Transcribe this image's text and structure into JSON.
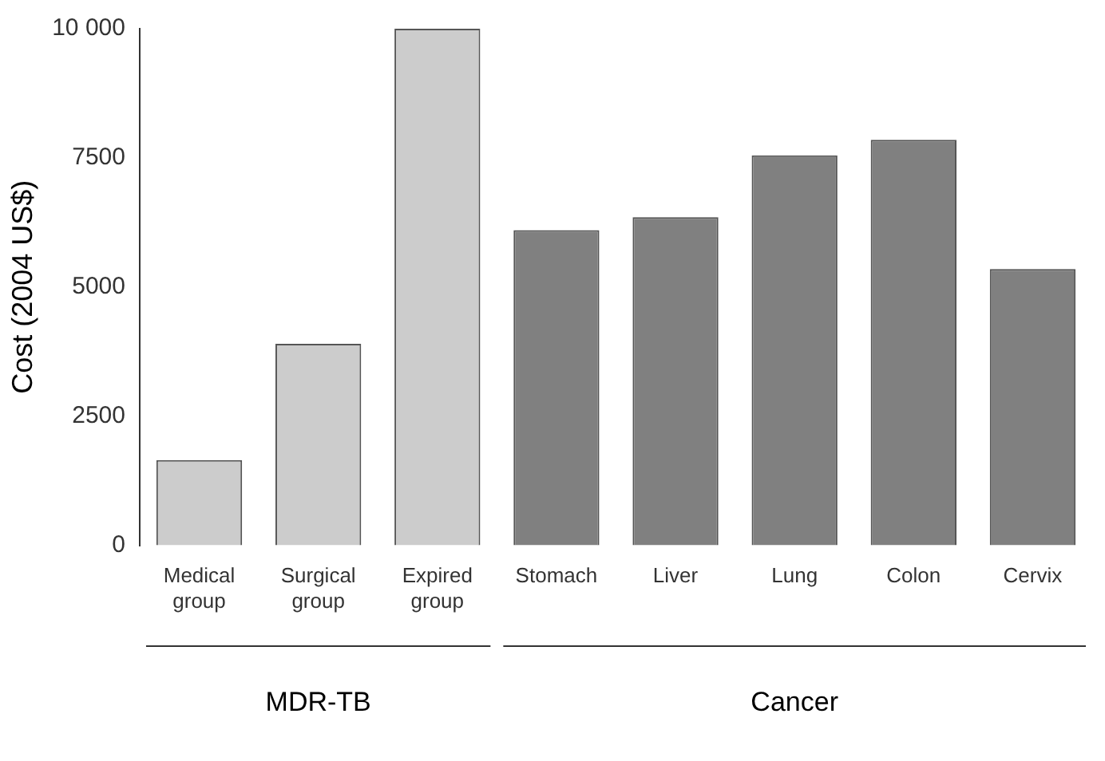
{
  "chart_data": {
    "type": "bar",
    "ylabel": "Cost (2004 US$)",
    "categories": [
      "Medical\ngroup",
      "Surgical\ngroup",
      "Expired\ngroup",
      "Stomach",
      "Liver",
      "Lung",
      "Colon",
      "Cervix"
    ],
    "values": [
      1650,
      3900,
      10000,
      6100,
      6350,
      7550,
      7850,
      5350
    ],
    "colors": [
      "#cccccc",
      "#cccccc",
      "#cccccc",
      "#808080",
      "#808080",
      "#808080",
      "#808080",
      "#808080"
    ],
    "ylim": [
      0,
      10000
    ],
    "yticks": [
      0,
      2500,
      5000,
      7500,
      {
        "value": 10000,
        "label": "10 000"
      }
    ],
    "annotations": [
      "MDR-TB",
      "Cancer"
    ],
    "grid": false,
    "legend": false
  }
}
